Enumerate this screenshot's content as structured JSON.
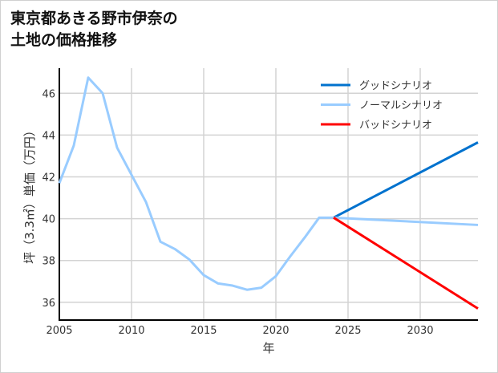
{
  "chart_data": {
    "type": "line",
    "title_lines": [
      "東京都あきる野市伊奈の",
      "土地の価格推移"
    ],
    "xlabel": "年",
    "ylabel": "坪（3.3㎡）単価（万円）",
    "xlim": [
      2005,
      2034
    ],
    "ylim": [
      35.15,
      47.2
    ],
    "xticks": [
      2005,
      2010,
      2015,
      2020,
      2025,
      2030
    ],
    "yticks": [
      36,
      38,
      40,
      42,
      44,
      46
    ],
    "grid": true,
    "legend_position": "top-right",
    "series": [
      {
        "name": "グッドシナリオ",
        "color": "#0072CE",
        "x": [
          2024,
          2034
        ],
        "y": [
          40.05,
          43.65
        ]
      },
      {
        "name": "ノーマルシナリオ",
        "color": "#99CCFF",
        "x": [
          2005,
          2006,
          2007,
          2008,
          2009,
          2010,
          2011,
          2012,
          2013,
          2014,
          2015,
          2016,
          2017,
          2018,
          2019,
          2020,
          2021,
          2022,
          2023,
          2024,
          2034
        ],
        "y": [
          41.7,
          43.5,
          46.75,
          46.0,
          43.4,
          42.1,
          40.8,
          38.9,
          38.55,
          38.05,
          37.3,
          36.9,
          36.8,
          36.6,
          36.7,
          37.25,
          38.2,
          39.1,
          40.05,
          40.05,
          39.7
        ]
      },
      {
        "name": "バッドシナリオ",
        "color": "#FF0000",
        "x": [
          2024,
          2034
        ],
        "y": [
          40.05,
          35.7
        ]
      }
    ]
  }
}
